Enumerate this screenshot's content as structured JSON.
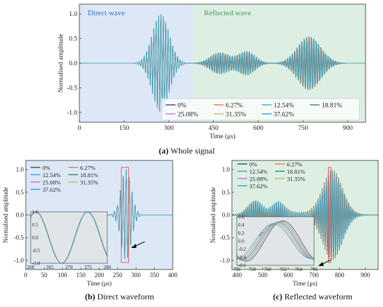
{
  "colors": {
    "direct_bg": "#dde8f7",
    "reflected_bg": "#ddefe2",
    "box": "#e05050",
    "series": [
      "#2f4f4f",
      "#e8794a",
      "#3aa7d9",
      "#2e8b57",
      "#b57edc",
      "#c9b458",
      "#29a3d6"
    ]
  },
  "captions": {
    "a_letter": "(a)",
    "a_text": "Whole signal",
    "b_letter": "(b)",
    "b_text": "Direct waveform",
    "c_letter": "(c)",
    "c_text": "Reflected waveform"
  },
  "chart_data": [
    {
      "id": "a",
      "type": "line",
      "xlabel": "Time (μs)",
      "ylabel": "Normalised amplitude",
      "xlim": [
        0,
        960
      ],
      "ylim": [
        -1.2,
        1.2
      ],
      "xticks": [
        0,
        150,
        300,
        450,
        600,
        750,
        900
      ],
      "yticks": [
        -1.0,
        -0.5,
        0.0,
        0.5,
        1.0
      ],
      "region_labels": {
        "direct": "Direct wave",
        "reflected": "Reflected wave"
      },
      "region_split": 380,
      "series": [
        {
          "name": "0%"
        },
        {
          "name": "6.27%"
        },
        {
          "name": "12.54%"
        },
        {
          "name": "18.81%"
        },
        {
          "name": "25.08%"
        },
        {
          "name": "31.35%"
        },
        {
          "name": "37.62%"
        }
      ],
      "direct_packet": {
        "center": 273,
        "width": 40,
        "peak": 1.0,
        "period": 8
      },
      "reflected_packets": [
        {
          "center": 470,
          "width": 45,
          "peak": 0.2
        },
        {
          "center": 560,
          "width": 40,
          "peak": 0.22
        },
        {
          "center": 770,
          "width": 55,
          "peak": 0.55
        }
      ]
    },
    {
      "id": "b",
      "type": "line",
      "xlabel": "Time (μs)",
      "ylabel": "Normalised amplitude",
      "xlim": [
        0,
        400
      ],
      "ylim": [
        -1.2,
        1.2
      ],
      "xticks": [
        0,
        50,
        100,
        150,
        200,
        250,
        300,
        350,
        400
      ],
      "yticks": [
        -1.0,
        -0.5,
        0.0,
        0.5,
        1.0
      ],
      "series": [
        {
          "name": "0%"
        },
        {
          "name": "6.27%"
        },
        {
          "name": "12.54%"
        },
        {
          "name": "18.81%"
        },
        {
          "name": "25.08%"
        },
        {
          "name": "31.35%"
        },
        {
          "name": "37.62%"
        }
      ],
      "zoom_box": [
        260,
        280
      ],
      "inset": {
        "xlim": [
          260,
          280
        ],
        "ylim": [
          -1.0,
          1.0
        ],
        "xticks": [
          260,
          265,
          270,
          275,
          280
        ],
        "yticks": [
          -1.0,
          -0.5,
          0.0,
          0.5,
          1.0
        ]
      }
    },
    {
      "id": "c",
      "type": "line",
      "xlabel": "Time (μs)",
      "ylabel": "Normalised amplitude",
      "xlim": [
        380,
        950
      ],
      "ylim": [
        -1.2,
        1.2
      ],
      "xticks": [
        400,
        500,
        600,
        700,
        800,
        900
      ],
      "yticks": [
        -1.0,
        -0.5,
        0.0,
        0.5,
        1.0
      ],
      "series": [
        {
          "name": "0%"
        },
        {
          "name": "6.27%"
        },
        {
          "name": "12.54%"
        },
        {
          "name": "18.81%"
        },
        {
          "name": "25.08%"
        },
        {
          "name": "31.35%"
        },
        {
          "name": "37.62%"
        }
      ],
      "zoom_box": [
        756,
        766
      ],
      "inset": {
        "xlim": [
          756,
          766
        ],
        "ylim": [
          -0.6,
          0.6
        ],
        "xticks": [
          756,
          758,
          760,
          762,
          764,
          766
        ],
        "yticks": [
          -0.6,
          -0.4,
          -0.2,
          0.0,
          0.2,
          0.4,
          0.6
        ]
      }
    }
  ]
}
